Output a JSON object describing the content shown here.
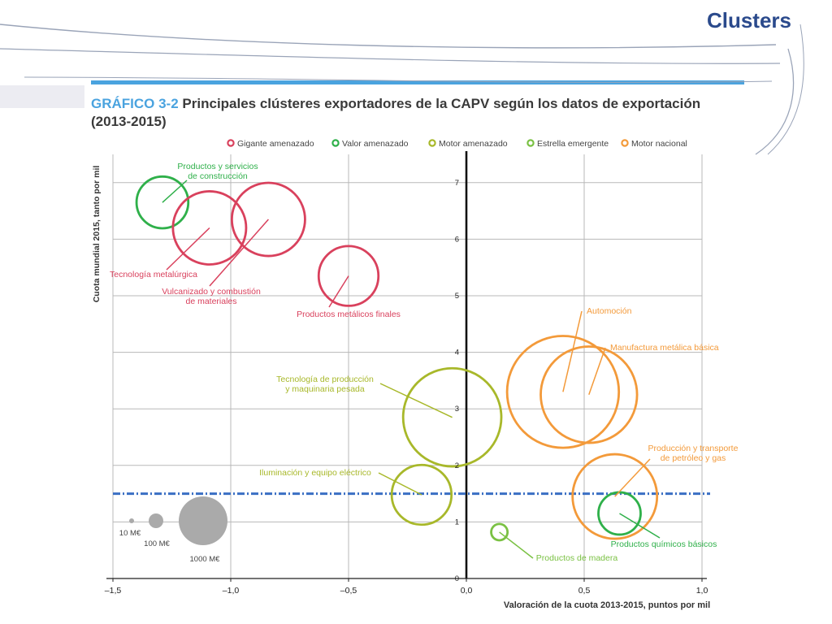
{
  "page": {
    "slide_title": "Clusters"
  },
  "figure": {
    "number": "GRÁFICO 3-2",
    "title": "Principales clústeres exportadores de la CAPV según los datos de exportación (2013-2015)"
  },
  "colors": {
    "gigante_amenazado": "#d9415d",
    "valor_amenazado": "#2fb04a",
    "motor_amenazado": "#a8b82a",
    "estrella_emergente": "#7ac143",
    "motor_nacional": "#f39a3a",
    "reference_line": "#3a6fc4",
    "size_legend": "#aaaaaa"
  },
  "chart_data": {
    "type": "scatter",
    "xlabel": "Valoración de la cuota 2013-2015, puntos por mil",
    "ylabel": "Cuota mundial 2015, tanto por mil",
    "xlim": [
      -1.5,
      1.0
    ],
    "ylim": [
      0,
      7.5
    ],
    "xticks": [
      -1.5,
      -1.0,
      -0.5,
      0.0,
      0.5,
      1.0
    ],
    "xtick_labels": [
      "–1,5",
      "–1,0",
      "–0,5",
      "0,0",
      "0,5",
      "1,0"
    ],
    "yticks": [
      0,
      1,
      2,
      3,
      4,
      5,
      6,
      7
    ],
    "ytick_labels": [
      "0",
      "1",
      "2",
      "3",
      "4",
      "5",
      "6",
      "7"
    ],
    "grid": true,
    "reference_y": 1.5,
    "legend": [
      {
        "name": "Gigante amenazado",
        "color": "#d9415d"
      },
      {
        "name": "Valor amenazado",
        "color": "#2fb04a"
      },
      {
        "name": "Motor amenazado",
        "color": "#a8b82a"
      },
      {
        "name": "Estrella emergente",
        "color": "#7ac143"
      },
      {
        "name": "Motor nacional",
        "color": "#f39a3a"
      }
    ],
    "points": [
      {
        "label": "Productos y servicios de construcción",
        "category": "Valor amenazado",
        "x": -1.29,
        "y": 6.65,
        "size": 150
      },
      {
        "label": "Tecnología metalúrgica",
        "category": "Gigante amenazado",
        "x": -1.09,
        "y": 6.2,
        "size": 300
      },
      {
        "label": "Vulcanizado y combustión de materiales",
        "category": "Gigante amenazado",
        "x": -0.84,
        "y": 6.35,
        "size": 300
      },
      {
        "label": "Productos metálicos finales",
        "category": "Gigante amenazado",
        "x": -0.5,
        "y": 5.35,
        "size": 200
      },
      {
        "label": "Automoción",
        "category": "Motor nacional",
        "x": 0.41,
        "y": 3.3,
        "size": 700
      },
      {
        "label": "Manufactura metálica básica",
        "category": "Motor nacional",
        "x": 0.52,
        "y": 3.25,
        "size": 520
      },
      {
        "label": "Tecnología de producción y maquinaria pesada",
        "category": "Motor amenazado",
        "x": -0.06,
        "y": 2.85,
        "size": 540
      },
      {
        "label": "Iluminación y equipo eléctrico",
        "category": "Motor amenazado",
        "x": -0.19,
        "y": 1.48,
        "size": 200
      },
      {
        "label": "Producción y transporte de petróleo y gas",
        "category": "Motor nacional",
        "x": 0.63,
        "y": 1.45,
        "size": 400
      },
      {
        "label": "Productos químicos básicos",
        "category": "Valor amenazado",
        "x": 0.65,
        "y": 1.15,
        "size": 100
      },
      {
        "label": "Productos de madera",
        "category": "Estrella emergente",
        "x": 0.14,
        "y": 0.82,
        "size": 15
      }
    ],
    "size_legend": [
      {
        "label": "10 M€",
        "value": 10
      },
      {
        "label": "100 M€",
        "value": 100
      },
      {
        "label": "1000 M€",
        "value": 1000
      }
    ]
  }
}
